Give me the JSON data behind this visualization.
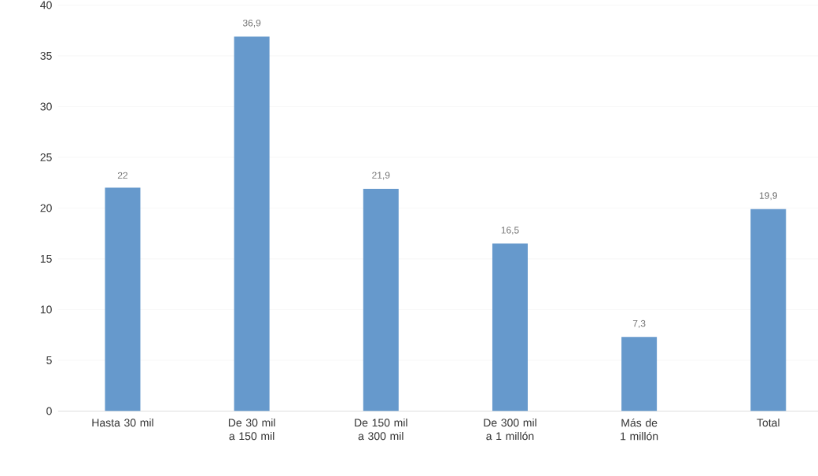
{
  "chart_data": {
    "type": "bar",
    "categories": [
      "Hasta 30 mil",
      "De 30 mil a 150 mil",
      "De 150 mil a 300 mil",
      "De 300 mil a 1 millón",
      "Más de 1 millón",
      "Total"
    ],
    "values": [
      22,
      36.9,
      21.9,
      16.5,
      7.3,
      19.9
    ],
    "value_labels": [
      "22",
      "36,9",
      "21,9",
      "16,5",
      "7,3",
      "19,9"
    ],
    "color": "#6699cc",
    "ylim": [
      0,
      40
    ],
    "yticks": [
      0,
      5,
      10,
      15,
      20,
      25,
      30,
      35,
      40
    ],
    "grid": "y"
  }
}
